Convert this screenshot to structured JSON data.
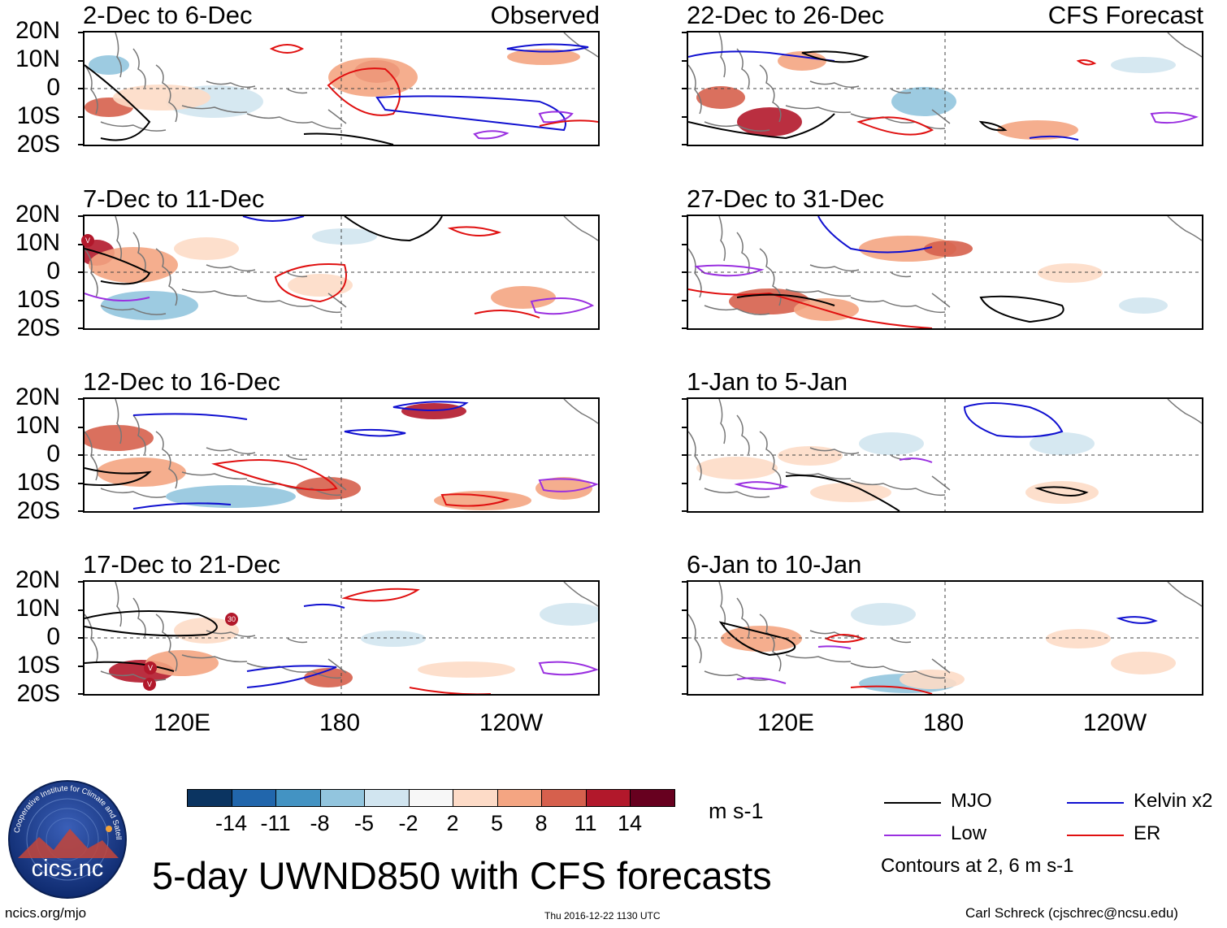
{
  "panels": [
    {
      "title": "2-Dec to 6-Dec",
      "tag": "Observed",
      "type": "observed"
    },
    {
      "title": "7-Dec to 11-Dec",
      "tag": "",
      "type": "observed"
    },
    {
      "title": "12-Dec to 16-Dec",
      "tag": "",
      "type": "observed"
    },
    {
      "title": "17-Dec to 21-Dec",
      "tag": "",
      "type": "observed"
    },
    {
      "title": "22-Dec to 26-Dec",
      "tag": "CFS Forecast",
      "type": "forecast"
    },
    {
      "title": "27-Dec to 31-Dec",
      "tag": "",
      "type": "forecast"
    },
    {
      "title": "1-Jan to 5-Jan",
      "tag": "",
      "type": "forecast"
    },
    {
      "title": "6-Jan to 10-Jan",
      "tag": "",
      "type": "forecast"
    }
  ],
  "lat_labels": [
    "20N",
    "10N",
    "0",
    "10S",
    "20S"
  ],
  "lon_labels": [
    "120E",
    "180",
    "120W"
  ],
  "storm_markers": [
    {
      "panel": 1,
      "label": "V"
    },
    {
      "panel": 3,
      "label": "30"
    },
    {
      "panel": 3,
      "label": "V"
    },
    {
      "panel": 3,
      "label": "V"
    }
  ],
  "colorbar": {
    "ticks": [
      "-14",
      "-11",
      "-8",
      "-5",
      "-2",
      "2",
      "5",
      "8",
      "11",
      "14"
    ],
    "colors": [
      "#0b3461",
      "#2166ac",
      "#4393c3",
      "#92c5de",
      "#d1e5f0",
      "#f7f7f7",
      "#fddbc7",
      "#f4a582",
      "#d6604d",
      "#b2182b",
      "#67001f"
    ],
    "units": "m s-1"
  },
  "legend": {
    "items": [
      {
        "label": "MJO",
        "color": "#000000"
      },
      {
        "label": "Kelvin x2",
        "color": "#1010d0"
      },
      {
        "label": "Low",
        "color": "#9a30e0"
      },
      {
        "label": "ER",
        "color": "#e01010"
      }
    ],
    "contours_note": "Contours at 2, 6 m s-1"
  },
  "logo": {
    "text": "cics.nc",
    "ring_text": "Cooperative Institute for Climate and Satellites"
  },
  "main_title": "5-day UWND850 with CFS forecasts",
  "footer": {
    "left": "ncics.org/mjo",
    "center": "Thu 2016-12-22 1130 UTC",
    "right": "Carl Schreck (cjschrec@ncsu.edu)"
  }
}
